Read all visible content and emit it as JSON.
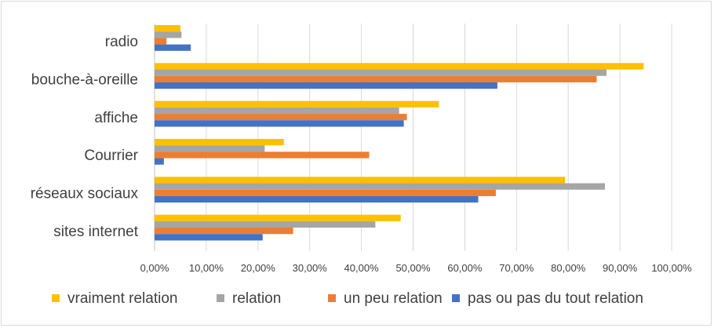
{
  "chart_data": {
    "type": "bar",
    "orientation": "horizontal",
    "categories": [
      "radio",
      "bouche-à-oreille",
      "affiche",
      "Courrier",
      "réseaux sociaux",
      "sites internet"
    ],
    "series": [
      {
        "name": "vraiment relation",
        "color": "#FFC000",
        "values": [
          5.0,
          94.6,
          55.0,
          25.0,
          79.4,
          47.6
        ]
      },
      {
        "name": "relation",
        "color": "#A5A5A5",
        "values": [
          5.2,
          87.4,
          47.3,
          21.3,
          87.1,
          42.7
        ]
      },
      {
        "name": "un peu relation",
        "color": "#ED7D31",
        "values": [
          2.3,
          85.5,
          48.8,
          41.5,
          66.0,
          26.8
        ]
      },
      {
        "name": "pas ou pas du tout relation",
        "color": "#4472C4",
        "values": [
          7.0,
          66.3,
          48.2,
          1.8,
          62.6,
          20.9
        ]
      }
    ],
    "xlim": [
      0,
      100
    ],
    "x_ticks": [
      "0,00%",
      "10,00%",
      "20,00%",
      "30,00%",
      "40,00%",
      "50,00%",
      "60,00%",
      "70,00%",
      "80,00%",
      "90,00%",
      "100,00%"
    ],
    "grid": true,
    "legend_position": "bottom",
    "title": "",
    "xlabel": "",
    "ylabel": ""
  }
}
